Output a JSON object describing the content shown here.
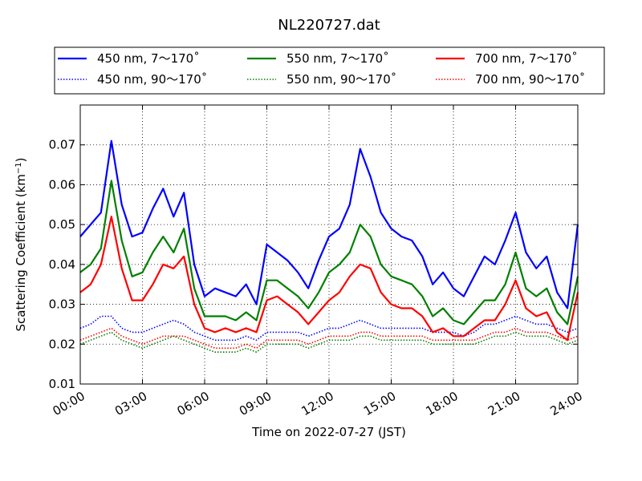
{
  "chart_data": {
    "type": "line",
    "title": "NL220727.dat",
    "xlabel": "Time on 2022-07-27 (JST)",
    "ylabel_main": "Scattering Coefficient (km",
    "ylabel_sup": "−1",
    "ylabel_close": ")",
    "xlim_hours": [
      0,
      24
    ],
    "ylim": [
      0.01,
      0.08
    ],
    "grid": true,
    "legend_placement": "top, outside plot",
    "x_ticks": [
      {
        "hour": 0,
        "label": "00:00"
      },
      {
        "hour": 3,
        "label": "03:00"
      },
      {
        "hour": 6,
        "label": "06:00"
      },
      {
        "hour": 9,
        "label": "09:00"
      },
      {
        "hour": 12,
        "label": "12:00"
      },
      {
        "hour": 15,
        "label": "15:00"
      },
      {
        "hour": 18,
        "label": "18:00"
      },
      {
        "hour": 21,
        "label": "21:00"
      },
      {
        "hour": 24,
        "label": "24:00"
      }
    ],
    "y_ticks": [
      {
        "value": 0.01,
        "label": "0.01"
      },
      {
        "value": 0.02,
        "label": "0.02"
      },
      {
        "value": 0.03,
        "label": "0.03"
      },
      {
        "value": 0.04,
        "label": "0.04"
      },
      {
        "value": 0.05,
        "label": "0.05"
      },
      {
        "value": 0.06,
        "label": "0.06"
      },
      {
        "value": 0.07,
        "label": "0.07"
      }
    ],
    "x_unit": "hours (JST)",
    "series": [
      {
        "name": "450 nm, 7～170˚",
        "color": "#0000ff",
        "style": "solid",
        "x": [
          0,
          0.5,
          1,
          1.5,
          2,
          2.5,
          3,
          3.5,
          4,
          4.5,
          5,
          5.5,
          6,
          6.5,
          7,
          7.5,
          8,
          8.5,
          9,
          9.5,
          10,
          10.5,
          11,
          11.5,
          12,
          12.5,
          13,
          13.5,
          14,
          14.5,
          15,
          15.5,
          16,
          16.5,
          17,
          17.5,
          18,
          18.5,
          19,
          19.5,
          20,
          20.5,
          21,
          21.5,
          22,
          22.5,
          23,
          23.5,
          24
        ],
        "values": [
          0.047,
          0.05,
          0.053,
          0.071,
          0.055,
          0.047,
          0.048,
          0.054,
          0.059,
          0.052,
          0.058,
          0.04,
          0.032,
          0.034,
          0.033,
          0.032,
          0.035,
          0.03,
          0.045,
          0.043,
          0.041,
          0.038,
          0.034,
          0.041,
          0.047,
          0.049,
          0.055,
          0.069,
          0.062,
          0.053,
          0.049,
          0.047,
          0.046,
          0.042,
          0.035,
          0.038,
          0.034,
          0.032,
          0.037,
          0.042,
          0.04,
          0.046,
          0.053,
          0.043,
          0.039,
          0.042,
          0.033,
          0.029,
          0.05
        ]
      },
      {
        "name": "450 nm, 90～170˚",
        "color": "#0000ff",
        "style": "dotted",
        "x": [
          0,
          0.5,
          1,
          1.5,
          2,
          2.5,
          3,
          3.5,
          4,
          4.5,
          5,
          5.5,
          6,
          6.5,
          7,
          7.5,
          8,
          8.5,
          9,
          9.5,
          10,
          10.5,
          11,
          11.5,
          12,
          12.5,
          13,
          13.5,
          14,
          14.5,
          15,
          15.5,
          16,
          16.5,
          17,
          17.5,
          18,
          18.5,
          19,
          19.5,
          20,
          20.5,
          21,
          21.5,
          22,
          22.5,
          23,
          23.5,
          24
        ],
        "values": [
          0.024,
          0.025,
          0.027,
          0.027,
          0.024,
          0.023,
          0.023,
          0.024,
          0.025,
          0.026,
          0.025,
          0.023,
          0.022,
          0.021,
          0.021,
          0.021,
          0.022,
          0.021,
          0.023,
          0.023,
          0.023,
          0.023,
          0.022,
          0.023,
          0.024,
          0.024,
          0.025,
          0.026,
          0.025,
          0.024,
          0.024,
          0.024,
          0.024,
          0.024,
          0.023,
          0.023,
          0.023,
          0.022,
          0.023,
          0.025,
          0.025,
          0.026,
          0.027,
          0.026,
          0.025,
          0.025,
          0.024,
          0.023,
          0.024
        ]
      },
      {
        "name": "550 nm, 7～170˚",
        "color": "#008000",
        "style": "solid",
        "x": [
          0,
          0.5,
          1,
          1.5,
          2,
          2.5,
          3,
          3.5,
          4,
          4.5,
          5,
          5.5,
          6,
          6.5,
          7,
          7.5,
          8,
          8.5,
          9,
          9.5,
          10,
          10.5,
          11,
          11.5,
          12,
          12.5,
          13,
          13.5,
          14,
          14.5,
          15,
          15.5,
          16,
          16.5,
          17,
          17.5,
          18,
          18.5,
          19,
          19.5,
          20,
          20.5,
          21,
          21.5,
          22,
          22.5,
          23,
          23.5,
          24
        ],
        "values": [
          0.038,
          0.04,
          0.044,
          0.061,
          0.046,
          0.037,
          0.038,
          0.043,
          0.047,
          0.043,
          0.049,
          0.034,
          0.027,
          0.027,
          0.027,
          0.026,
          0.028,
          0.026,
          0.036,
          0.036,
          0.034,
          0.032,
          0.029,
          0.033,
          0.038,
          0.04,
          0.043,
          0.05,
          0.047,
          0.04,
          0.037,
          0.036,
          0.035,
          0.032,
          0.027,
          0.029,
          0.026,
          0.025,
          0.028,
          0.031,
          0.031,
          0.035,
          0.043,
          0.034,
          0.032,
          0.034,
          0.028,
          0.025,
          0.037
        ]
      },
      {
        "name": "550 nm, 90～170˚",
        "color": "#008000",
        "style": "dotted",
        "x": [
          0,
          0.5,
          1,
          1.5,
          2,
          2.5,
          3,
          3.5,
          4,
          4.5,
          5,
          5.5,
          6,
          6.5,
          7,
          7.5,
          8,
          8.5,
          9,
          9.5,
          10,
          10.5,
          11,
          11.5,
          12,
          12.5,
          13,
          13.5,
          14,
          14.5,
          15,
          15.5,
          16,
          16.5,
          17,
          17.5,
          18,
          18.5,
          19,
          19.5,
          20,
          20.5,
          21,
          21.5,
          22,
          22.5,
          23,
          23.5,
          24
        ],
        "values": [
          0.02,
          0.021,
          0.022,
          0.023,
          0.021,
          0.02,
          0.019,
          0.02,
          0.021,
          0.022,
          0.021,
          0.02,
          0.019,
          0.018,
          0.018,
          0.018,
          0.019,
          0.018,
          0.02,
          0.02,
          0.02,
          0.02,
          0.019,
          0.02,
          0.021,
          0.021,
          0.021,
          0.022,
          0.022,
          0.021,
          0.021,
          0.021,
          0.021,
          0.021,
          0.02,
          0.02,
          0.02,
          0.02,
          0.02,
          0.021,
          0.022,
          0.022,
          0.023,
          0.022,
          0.022,
          0.022,
          0.021,
          0.02,
          0.021
        ]
      },
      {
        "name": "700 nm, 7～170˚",
        "color": "#ff0000",
        "style": "solid",
        "x": [
          0,
          0.5,
          1,
          1.5,
          2,
          2.5,
          3,
          3.5,
          4,
          4.5,
          5,
          5.5,
          6,
          6.5,
          7,
          7.5,
          8,
          8.5,
          9,
          9.5,
          10,
          10.5,
          11,
          11.5,
          12,
          12.5,
          13,
          13.5,
          14,
          14.5,
          15,
          15.5,
          16,
          16.5,
          17,
          17.5,
          18,
          18.5,
          19,
          19.5,
          20,
          20.5,
          21,
          21.5,
          22,
          22.5,
          23,
          23.5,
          24
        ],
        "values": [
          0.033,
          0.035,
          0.04,
          0.052,
          0.039,
          0.031,
          0.031,
          0.035,
          0.04,
          0.039,
          0.042,
          0.03,
          0.024,
          0.023,
          0.024,
          0.023,
          0.024,
          0.023,
          0.031,
          0.032,
          0.03,
          0.028,
          0.025,
          0.028,
          0.031,
          0.033,
          0.037,
          0.04,
          0.039,
          0.033,
          0.03,
          0.029,
          0.029,
          0.027,
          0.023,
          0.024,
          0.022,
          0.022,
          0.024,
          0.026,
          0.026,
          0.03,
          0.036,
          0.029,
          0.027,
          0.028,
          0.023,
          0.021,
          0.033
        ]
      },
      {
        "name": "700 nm, 90～170˚",
        "color": "#ff0000",
        "style": "dotted",
        "x": [
          0,
          0.5,
          1,
          1.5,
          2,
          2.5,
          3,
          3.5,
          4,
          4.5,
          5,
          5.5,
          6,
          6.5,
          7,
          7.5,
          8,
          8.5,
          9,
          9.5,
          10,
          10.5,
          11,
          11.5,
          12,
          12.5,
          13,
          13.5,
          14,
          14.5,
          15,
          15.5,
          16,
          16.5,
          17,
          17.5,
          18,
          18.5,
          19,
          19.5,
          20,
          20.5,
          21,
          21.5,
          22,
          22.5,
          23,
          23.5,
          24
        ],
        "values": [
          0.021,
          0.022,
          0.023,
          0.024,
          0.022,
          0.021,
          0.02,
          0.021,
          0.022,
          0.022,
          0.022,
          0.021,
          0.02,
          0.019,
          0.019,
          0.019,
          0.02,
          0.019,
          0.021,
          0.021,
          0.021,
          0.021,
          0.02,
          0.021,
          0.022,
          0.022,
          0.022,
          0.023,
          0.023,
          0.022,
          0.022,
          0.022,
          0.022,
          0.022,
          0.021,
          0.021,
          0.021,
          0.021,
          0.021,
          0.022,
          0.023,
          0.023,
          0.024,
          0.023,
          0.023,
          0.023,
          0.022,
          0.021,
          0.022
        ]
      }
    ]
  }
}
